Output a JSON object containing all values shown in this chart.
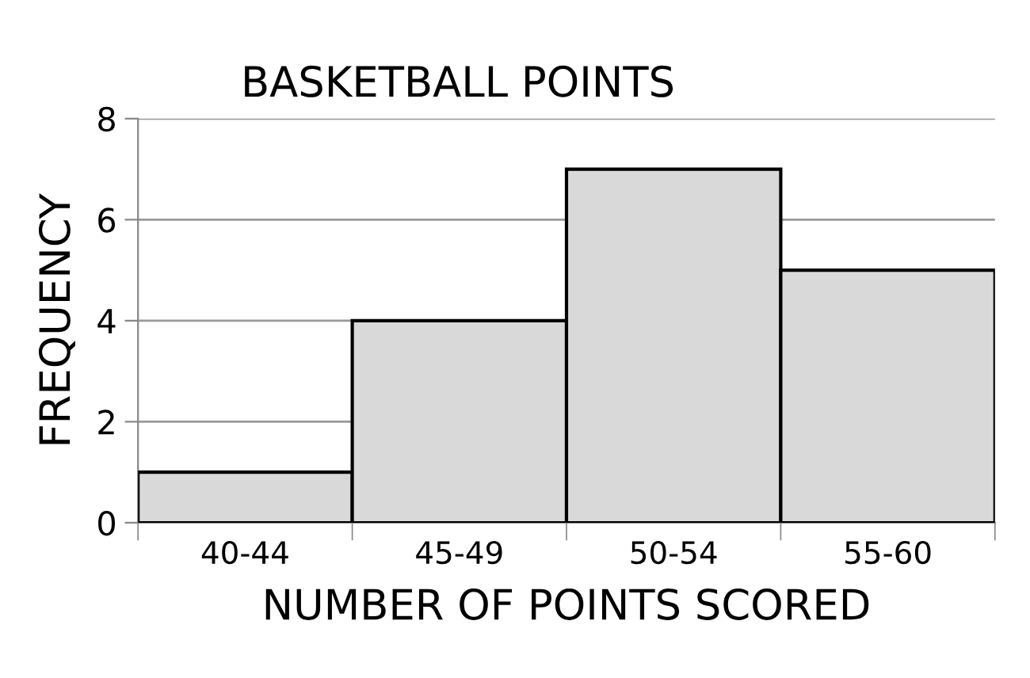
{
  "chart_data": {
    "type": "bar",
    "title": "BASKETBALL POINTS",
    "xlabel": "NUMBER OF POINTS SCORED",
    "ylabel": "FREQUENCY",
    "categories": [
      "40-44",
      "45-49",
      "50-54",
      "55-60"
    ],
    "values": [
      1,
      4,
      7,
      5
    ],
    "color": "#d9d9d9",
    "ylim": [
      0,
      8
    ],
    "yticks": [
      0,
      2,
      4,
      6,
      8
    ],
    "grid": "y",
    "legend": false
  }
}
